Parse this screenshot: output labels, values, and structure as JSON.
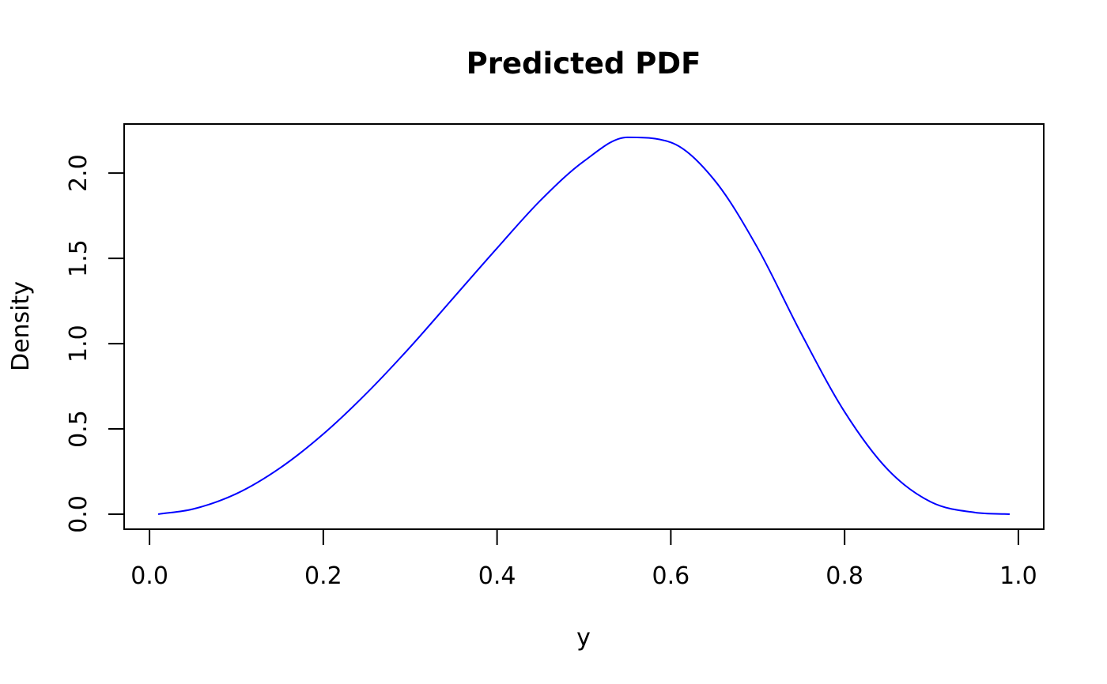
{
  "chart_data": {
    "type": "line",
    "title": "Predicted PDF",
    "xlabel": "y",
    "ylabel": "Density",
    "xlim": [
      -0.0292,
      1.0292
    ],
    "ylim": [
      -0.088,
      2.288
    ],
    "x_ticks": [
      0.0,
      0.2,
      0.4,
      0.6,
      0.8,
      1.0
    ],
    "x_tick_labels": [
      "0.0",
      "0.2",
      "0.4",
      "0.6",
      "0.8",
      "1.0"
    ],
    "y_ticks": [
      0.0,
      0.5,
      1.0,
      1.5,
      2.0
    ],
    "y_tick_labels": [
      "0.0",
      "0.5",
      "1.0",
      "1.5",
      "2.0"
    ],
    "grid": false,
    "line_color": "#0000ff",
    "series": [
      {
        "x": [
          0.01,
          0.05,
          0.1,
          0.15,
          0.2,
          0.25,
          0.3,
          0.35,
          0.4,
          0.45,
          0.5,
          0.55,
          0.6,
          0.65,
          0.7,
          0.75,
          0.8,
          0.85,
          0.9,
          0.95,
          0.99
        ],
        "values": [
          0.0,
          0.03,
          0.12,
          0.27,
          0.47,
          0.71,
          0.98,
          1.27,
          1.56,
          1.84,
          2.07,
          2.21,
          2.18,
          1.96,
          1.56,
          1.06,
          0.6,
          0.26,
          0.07,
          0.01,
          0.0
        ]
      }
    ]
  }
}
